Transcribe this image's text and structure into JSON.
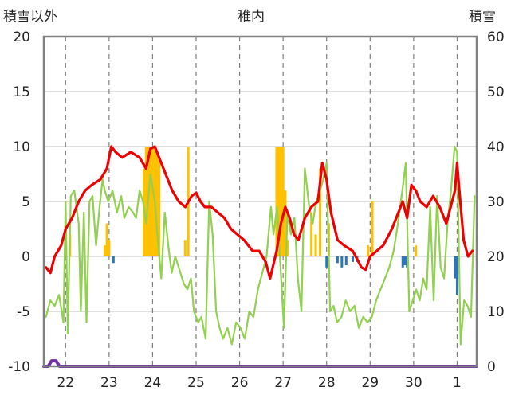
{
  "chart_data": {
    "type": "line",
    "title": "稚内",
    "left_axis_label": "積雪以外",
    "right_axis_label": "積雪",
    "x_tick_labels": [
      "22",
      "23",
      "24",
      "25",
      "26",
      "27",
      "28",
      "29",
      "30",
      "1"
    ],
    "x_range": [
      21.5,
      31.45
    ],
    "y_left_range": [
      -10,
      20
    ],
    "y_left_ticks": [
      20,
      15,
      10,
      5,
      0,
      -5,
      -10
    ],
    "y_right_range": [
      0,
      60
    ],
    "y_right_ticks": [
      60,
      50,
      40,
      30,
      20,
      10,
      0
    ],
    "grid": true,
    "colors": {
      "temperature_red": "#ee0000",
      "green_series": "#92d050",
      "orange_bars": "#ffc000",
      "blue_bars": "#2e75b6",
      "snow_depth_purple": "#7030a0",
      "grid": "#7f7f7f",
      "frame": "#808080"
    },
    "series": [
      {
        "key": "red",
        "axis": "left",
        "points": [
          [
            21.55,
            -1.0
          ],
          [
            21.65,
            -1.5
          ],
          [
            21.75,
            0.0
          ],
          [
            21.9,
            1.0
          ],
          [
            22.0,
            2.5
          ],
          [
            22.15,
            3.5
          ],
          [
            22.3,
            5.0
          ],
          [
            22.45,
            6.0
          ],
          [
            22.6,
            6.5
          ],
          [
            22.8,
            7.0
          ],
          [
            22.95,
            8.0
          ],
          [
            23.05,
            10.0
          ],
          [
            23.15,
            9.5
          ],
          [
            23.3,
            9.0
          ],
          [
            23.5,
            9.5
          ],
          [
            23.7,
            9.0
          ],
          [
            23.85,
            8.0
          ],
          [
            23.95,
            9.8
          ],
          [
            24.05,
            10.0
          ],
          [
            24.15,
            9.0
          ],
          [
            24.3,
            7.5
          ],
          [
            24.45,
            6.0
          ],
          [
            24.6,
            5.0
          ],
          [
            24.75,
            4.5
          ],
          [
            24.9,
            5.5
          ],
          [
            25.0,
            5.8
          ],
          [
            25.1,
            5.0
          ],
          [
            25.2,
            4.5
          ],
          [
            25.35,
            4.5
          ],
          [
            25.5,
            4.0
          ],
          [
            25.65,
            3.5
          ],
          [
            25.8,
            2.5
          ],
          [
            25.95,
            2.0
          ],
          [
            26.1,
            1.5
          ],
          [
            26.3,
            0.5
          ],
          [
            26.45,
            0.5
          ],
          [
            26.6,
            -0.5
          ],
          [
            26.7,
            -2.0
          ],
          [
            26.85,
            0.5
          ],
          [
            26.95,
            3.0
          ],
          [
            27.05,
            4.5
          ],
          [
            27.15,
            3.5
          ],
          [
            27.25,
            2.0
          ],
          [
            27.35,
            1.5
          ],
          [
            27.5,
            3.5
          ],
          [
            27.65,
            4.5
          ],
          [
            27.8,
            5.0
          ],
          [
            27.9,
            8.5
          ],
          [
            28.0,
            7.0
          ],
          [
            28.1,
            4.0
          ],
          [
            28.25,
            1.5
          ],
          [
            28.4,
            1.0
          ],
          [
            28.6,
            0.5
          ],
          [
            28.8,
            -1.0
          ],
          [
            28.9,
            -1.2
          ],
          [
            29.0,
            0.0
          ],
          [
            29.15,
            0.5
          ],
          [
            29.3,
            1.0
          ],
          [
            29.5,
            2.5
          ],
          [
            29.65,
            4.0
          ],
          [
            29.75,
            5.0
          ],
          [
            29.85,
            3.5
          ],
          [
            29.95,
            6.5
          ],
          [
            30.05,
            6.0
          ],
          [
            30.15,
            5.0
          ],
          [
            30.3,
            4.5
          ],
          [
            30.45,
            5.5
          ],
          [
            30.6,
            4.5
          ],
          [
            30.75,
            3.0
          ],
          [
            30.85,
            4.5
          ],
          [
            30.95,
            6.0
          ],
          [
            31.0,
            8.5
          ],
          [
            31.05,
            6.0
          ],
          [
            31.15,
            1.5
          ],
          [
            31.25,
            0.0
          ],
          [
            31.35,
            0.5
          ]
        ]
      },
      {
        "key": "green",
        "axis": "left",
        "points": [
          [
            21.55,
            -5.5
          ],
          [
            21.65,
            -4.0
          ],
          [
            21.75,
            -4.5
          ],
          [
            21.85,
            -3.5
          ],
          [
            21.95,
            -6.0
          ],
          [
            22.0,
            5.0
          ],
          [
            22.05,
            -7.0
          ],
          [
            22.12,
            5.5
          ],
          [
            22.2,
            6.0
          ],
          [
            22.3,
            3.0
          ],
          [
            22.35,
            -5.0
          ],
          [
            22.42,
            4.0
          ],
          [
            22.48,
            -6.0
          ],
          [
            22.55,
            5.0
          ],
          [
            22.62,
            5.5
          ],
          [
            22.7,
            1.0
          ],
          [
            22.78,
            4.5
          ],
          [
            22.85,
            7.0
          ],
          [
            22.9,
            6.0
          ],
          [
            22.98,
            5.0
          ],
          [
            23.08,
            6.0
          ],
          [
            23.18,
            4.0
          ],
          [
            23.28,
            5.5
          ],
          [
            23.35,
            3.5
          ],
          [
            23.45,
            4.5
          ],
          [
            23.55,
            4.0
          ],
          [
            23.62,
            3.5
          ],
          [
            23.7,
            6.0
          ],
          [
            23.78,
            5.0
          ],
          [
            23.85,
            3.0
          ],
          [
            23.95,
            7.5
          ],
          [
            24.05,
            5.0
          ],
          [
            24.12,
            1.5
          ],
          [
            24.2,
            -2.0
          ],
          [
            24.28,
            4.0
          ],
          [
            24.36,
            1.0
          ],
          [
            24.44,
            -1.5
          ],
          [
            24.52,
            0.0
          ],
          [
            24.6,
            -1.0
          ],
          [
            24.72,
            -2.5
          ],
          [
            24.8,
            -3.0
          ],
          [
            24.88,
            -2.0
          ],
          [
            24.95,
            -5.0
          ],
          [
            25.05,
            -6.0
          ],
          [
            25.12,
            -5.5
          ],
          [
            25.22,
            -7.5
          ],
          [
            25.3,
            5.0
          ],
          [
            25.38,
            2.0
          ],
          [
            25.46,
            -5.0
          ],
          [
            25.54,
            -6.5
          ],
          [
            25.62,
            -7.5
          ],
          [
            25.72,
            -6.5
          ],
          [
            25.82,
            -8.0
          ],
          [
            25.92,
            -6.0
          ],
          [
            26.02,
            -6.5
          ],
          [
            26.12,
            -7.5
          ],
          [
            26.22,
            -5.0
          ],
          [
            26.32,
            -5.5
          ],
          [
            26.42,
            -3.0
          ],
          [
            26.52,
            -1.5
          ],
          [
            26.62,
            0.0
          ],
          [
            26.72,
            4.5
          ],
          [
            26.78,
            2.0
          ],
          [
            26.86,
            4.5
          ],
          [
            26.94,
            -1.0
          ],
          [
            27.02,
            -6.5
          ],
          [
            27.1,
            4.0
          ],
          [
            27.18,
            2.0
          ],
          [
            27.26,
            3.5
          ],
          [
            27.34,
            -2.0
          ],
          [
            27.42,
            -5.0
          ],
          [
            27.5,
            8.0
          ],
          [
            27.6,
            4.5
          ],
          [
            27.68,
            3.0
          ],
          [
            27.76,
            5.0
          ],
          [
            27.85,
            6.0
          ],
          [
            27.92,
            7.0
          ],
          [
            28.0,
            8.5
          ],
          [
            28.08,
            -5.0
          ],
          [
            28.16,
            -4.5
          ],
          [
            28.24,
            -6.0
          ],
          [
            28.34,
            -5.5
          ],
          [
            28.44,
            -4.0
          ],
          [
            28.54,
            -5.0
          ],
          [
            28.64,
            -4.5
          ],
          [
            28.74,
            -6.5
          ],
          [
            28.84,
            -5.5
          ],
          [
            28.94,
            -6.0
          ],
          [
            29.04,
            -5.5
          ],
          [
            29.14,
            -4.0
          ],
          [
            29.24,
            -3.0
          ],
          [
            29.34,
            -2.0
          ],
          [
            29.44,
            -1.0
          ],
          [
            29.54,
            0.5
          ],
          [
            29.64,
            3.0
          ],
          [
            29.74,
            6.0
          ],
          [
            29.82,
            8.5
          ],
          [
            29.9,
            -5.0
          ],
          [
            29.98,
            -4.0
          ],
          [
            30.06,
            -3.0
          ],
          [
            30.14,
            -4.0
          ],
          [
            30.22,
            -2.0
          ],
          [
            30.3,
            -3.0
          ],
          [
            30.38,
            4.5
          ],
          [
            30.46,
            -4.0
          ],
          [
            30.54,
            5.5
          ],
          [
            30.62,
            -1.0
          ],
          [
            30.7,
            -2.0
          ],
          [
            30.78,
            3.0
          ],
          [
            30.86,
            6.0
          ],
          [
            30.94,
            10.0
          ],
          [
            31.0,
            9.5
          ],
          [
            31.08,
            -8.0
          ],
          [
            31.16,
            -4.0
          ],
          [
            31.24,
            -4.5
          ],
          [
            31.32,
            -5.5
          ],
          [
            31.4,
            5.5
          ]
        ]
      },
      {
        "key": "purple",
        "axis": "right",
        "points": [
          [
            21.5,
            0.0
          ],
          [
            21.6,
            0.0
          ],
          [
            21.68,
            1.0
          ],
          [
            21.78,
            1.0
          ],
          [
            21.86,
            0.0
          ],
          [
            31.45,
            0.0
          ]
        ]
      }
    ],
    "orange_bars": [
      [
        22.0,
        1.0
      ],
      [
        22.1,
        2.0
      ],
      [
        22.9,
        1.0
      ],
      [
        22.95,
        3.0
      ],
      [
        23.0,
        1.5
      ],
      [
        23.8,
        8.0
      ],
      [
        23.85,
        10.0
      ],
      [
        23.9,
        10.0
      ],
      [
        23.95,
        10.0
      ],
      [
        24.0,
        10.0
      ],
      [
        24.05,
        10.0
      ],
      [
        24.1,
        9.5
      ],
      [
        24.15,
        9.0
      ],
      [
        24.75,
        1.5
      ],
      [
        24.82,
        10.0
      ],
      [
        26.85,
        10.0
      ],
      [
        26.9,
        10.0
      ],
      [
        26.95,
        10.0
      ],
      [
        27.0,
        10.0
      ],
      [
        27.05,
        6.0
      ],
      [
        27.1,
        1.5
      ],
      [
        27.65,
        4.0
      ],
      [
        27.75,
        2.0
      ],
      [
        27.85,
        8.0
      ],
      [
        28.05,
        3.0
      ],
      [
        28.95,
        1.0
      ],
      [
        29.05,
        5.0
      ],
      [
        30.05,
        1.0
      ]
    ],
    "blue_bars": [
      [
        23.1,
        -0.6
      ],
      [
        28.0,
        -1.0
      ],
      [
        28.25,
        -0.6
      ],
      [
        28.35,
        -1.0
      ],
      [
        28.45,
        -0.8
      ],
      [
        28.6,
        -0.5
      ],
      [
        28.7,
        -0.5
      ],
      [
        29.75,
        -1.0
      ],
      [
        29.8,
        -0.8
      ],
      [
        29.85,
        -1.0
      ],
      [
        30.95,
        -2.0
      ],
      [
        31.0,
        -3.5
      ]
    ]
  }
}
